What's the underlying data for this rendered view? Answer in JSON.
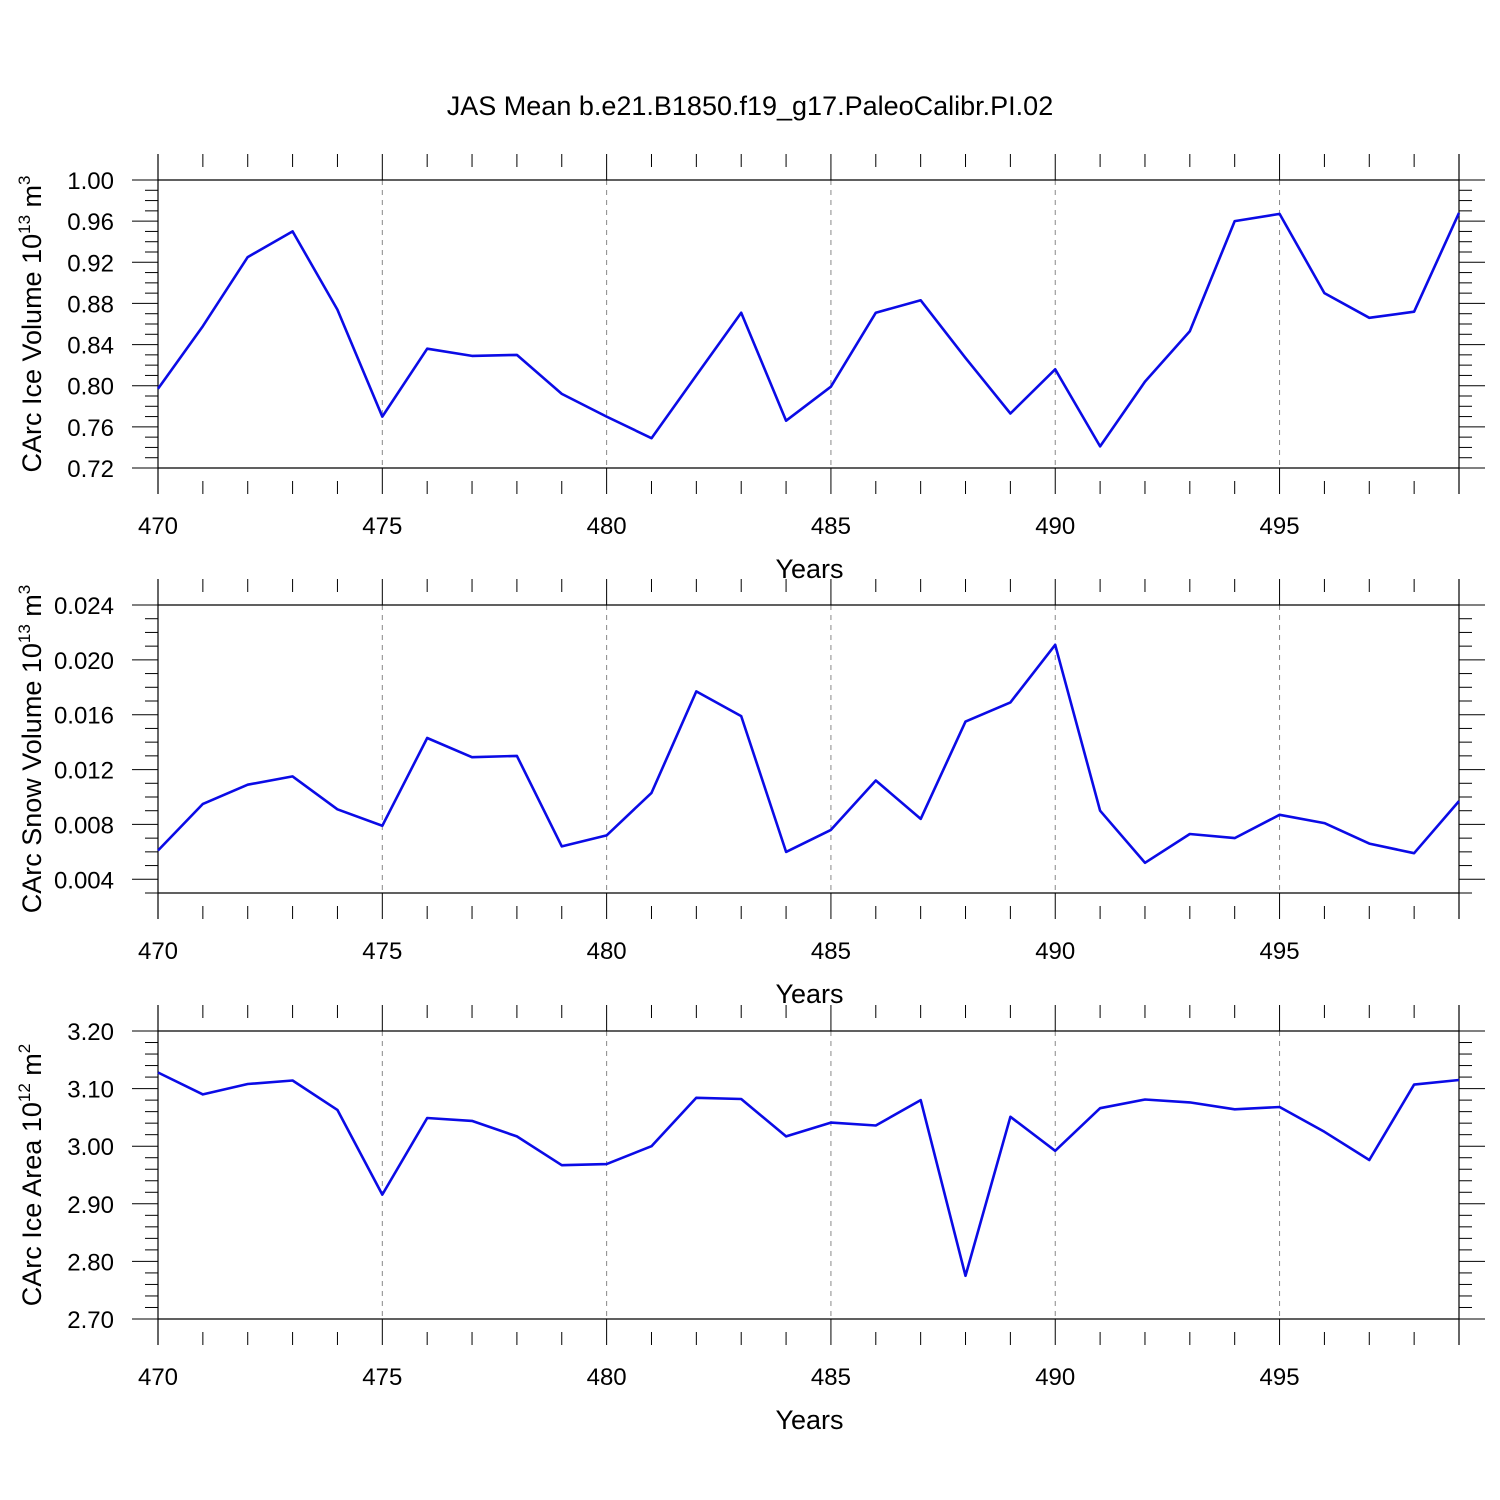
{
  "figure_title": "JAS Mean b.e21.B1850.f19_g17.PaleoCalibr.PI.02",
  "line_color": "#0b0be6",
  "chart_data": [
    {
      "type": "line",
      "title": "",
      "xlabel": "Years",
      "ylabel": {
        "base": "CArc Ice Volume 10",
        "exp": "13",
        "unit": " m",
        "unit_exp": "3"
      },
      "xlim": [
        470,
        499
      ],
      "ylim": [
        0.72,
        1.0
      ],
      "grid": "vertical dashed at major x ticks",
      "x_ticks": [
        "470",
        "475",
        "480",
        "485",
        "490",
        "495"
      ],
      "x_tick_values": [
        470,
        475,
        480,
        485,
        490,
        495
      ],
      "y_ticks": [
        "0.72",
        "0.76",
        "0.80",
        "0.84",
        "0.88",
        "0.92",
        "0.96",
        "1.00"
      ],
      "y_tick_values": [
        0.72,
        0.76,
        0.8,
        0.84,
        0.88,
        0.92,
        0.96,
        1.0
      ],
      "x_minor_step": 1,
      "y_minor_step": 0.01,
      "x": [
        470,
        471,
        472,
        473,
        474,
        475,
        476,
        477,
        478,
        479,
        480,
        481,
        482,
        483,
        484,
        485,
        486,
        487,
        488,
        489,
        490,
        491,
        492,
        493,
        494,
        495,
        496,
        497,
        498,
        499
      ],
      "y": [
        0.797,
        0.858,
        0.925,
        0.95,
        0.874,
        0.77,
        0.836,
        0.829,
        0.83,
        0.792,
        0.77,
        0.749,
        0.81,
        0.871,
        0.766,
        0.799,
        0.871,
        0.883,
        0.827,
        0.773,
        0.816,
        0.741,
        0.804,
        0.853,
        0.96,
        0.967,
        0.89,
        0.866,
        0.872,
        0.968
      ]
    },
    {
      "type": "line",
      "title": "",
      "xlabel": "Years",
      "ylabel": {
        "base": "CArc Snow Volume 10",
        "exp": "13",
        "unit": " m",
        "unit_exp": "3"
      },
      "xlim": [
        470,
        499
      ],
      "ylim": [
        0.003,
        0.024
      ],
      "grid": "vertical dashed at major x ticks",
      "x_ticks": [
        "470",
        "475",
        "480",
        "485",
        "490",
        "495"
      ],
      "x_tick_values": [
        470,
        475,
        480,
        485,
        490,
        495
      ],
      "y_ticks": [
        "0.004",
        "0.008",
        "0.012",
        "0.016",
        "0.020",
        "0.024"
      ],
      "y_tick_values": [
        0.004,
        0.008,
        0.012,
        0.016,
        0.02,
        0.024
      ],
      "x_minor_step": 1,
      "y_minor_step": 0.001,
      "x": [
        470,
        471,
        472,
        473,
        474,
        475,
        476,
        477,
        478,
        479,
        480,
        481,
        482,
        483,
        484,
        485,
        486,
        487,
        488,
        489,
        490,
        491,
        492,
        493,
        494,
        495,
        496,
        497,
        498,
        499
      ],
      "y": [
        0.0061,
        0.0095,
        0.0109,
        0.0115,
        0.0091,
        0.0079,
        0.0143,
        0.0129,
        0.013,
        0.0064,
        0.0072,
        0.0103,
        0.0177,
        0.0159,
        0.006,
        0.0076,
        0.0112,
        0.0084,
        0.0155,
        0.0169,
        0.0211,
        0.009,
        0.0052,
        0.0073,
        0.007,
        0.0087,
        0.0081,
        0.0066,
        0.0059,
        0.0097
      ]
    },
    {
      "type": "line",
      "title": "",
      "xlabel": "Years",
      "ylabel": {
        "base": "CArc Ice Area 10",
        "exp": "12",
        "unit": " m",
        "unit_exp": "2"
      },
      "xlim": [
        470,
        499
      ],
      "ylim": [
        2.7,
        3.2
      ],
      "grid": "vertical dashed at major x ticks",
      "x_ticks": [
        "470",
        "475",
        "480",
        "485",
        "490",
        "495"
      ],
      "x_tick_values": [
        470,
        475,
        480,
        485,
        490,
        495
      ],
      "y_ticks": [
        "2.70",
        "2.80",
        "2.90",
        "3.00",
        "3.10",
        "3.20"
      ],
      "y_tick_values": [
        2.7,
        2.8,
        2.9,
        3.0,
        3.1,
        3.2
      ],
      "x_minor_step": 1,
      "y_minor_step": 0.02,
      "x": [
        470,
        471,
        472,
        473,
        474,
        475,
        476,
        477,
        478,
        479,
        480,
        481,
        482,
        483,
        484,
        485,
        486,
        487,
        488,
        489,
        490,
        491,
        492,
        493,
        494,
        495,
        496,
        497,
        498,
        499
      ],
      "y": [
        3.128,
        3.09,
        3.108,
        3.114,
        3.063,
        2.916,
        3.049,
        3.044,
        3.017,
        2.967,
        2.969,
        3.0,
        3.084,
        3.082,
        3.017,
        3.041,
        3.036,
        3.08,
        2.775,
        3.051,
        2.992,
        3.066,
        3.081,
        3.076,
        3.064,
        3.068,
        3.025,
        2.976,
        3.107,
        3.115
      ]
    }
  ]
}
